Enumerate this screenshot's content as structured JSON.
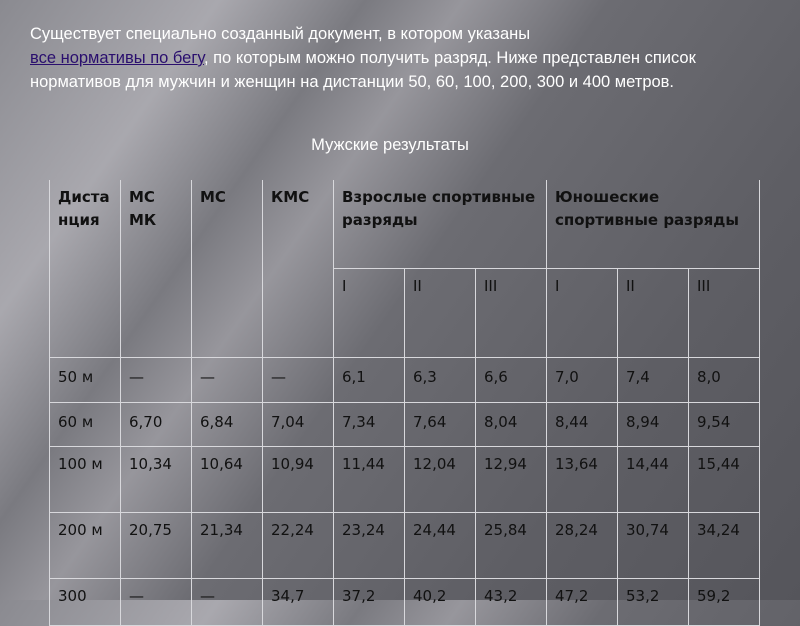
{
  "intro": {
    "line1": "Существует специально созданный документ, в котором указаны",
    "link": "все нормативы по бегу",
    "rest": ", по которым можно получить разряд. Ниже представлен список нормативов для мужчин и женщин на дистанции 50, 60, 100, 200, 300 и 400 метров."
  },
  "caption": "Мужские результаты",
  "table": {
    "headers": {
      "distance": "Дистанция",
      "msmk": "МС МК",
      "ms": "МС",
      "kms": "КМС",
      "adult": "Взрослые спортивные разряды",
      "youth": " Юношеские спортивные разряды",
      "sub": [
        "I",
        "II",
        "III",
        "I",
        "II",
        "III"
      ]
    },
    "rows": [
      [
        "50 м",
        "—",
        "—",
        "—",
        "6,1",
        "6,3",
        "6,6",
        "7,0",
        "7,4",
        "8,0"
      ],
      [
        "60 м",
        "6,70",
        "6,84",
        "7,04",
        "7,34",
        "7,64",
        "8,04",
        "8,44",
        "8,94",
        "9,54"
      ],
      [
        "100 м",
        "10,34",
        "10,64",
        "10,94",
        "11,44",
        "12,04",
        "12,94",
        "13,64",
        "14,44",
        "15,44"
      ],
      [
        "200 м",
        "20,75",
        "21,34",
        "22,24",
        "23,24",
        "24,44",
        "25,84",
        "28,24",
        "30,74",
        "34,24"
      ],
      [
        "300",
        "—",
        "—",
        "34,7",
        "37,2",
        "40,2",
        "43,2",
        "47,2",
        "53,2",
        "59,2"
      ]
    ]
  }
}
